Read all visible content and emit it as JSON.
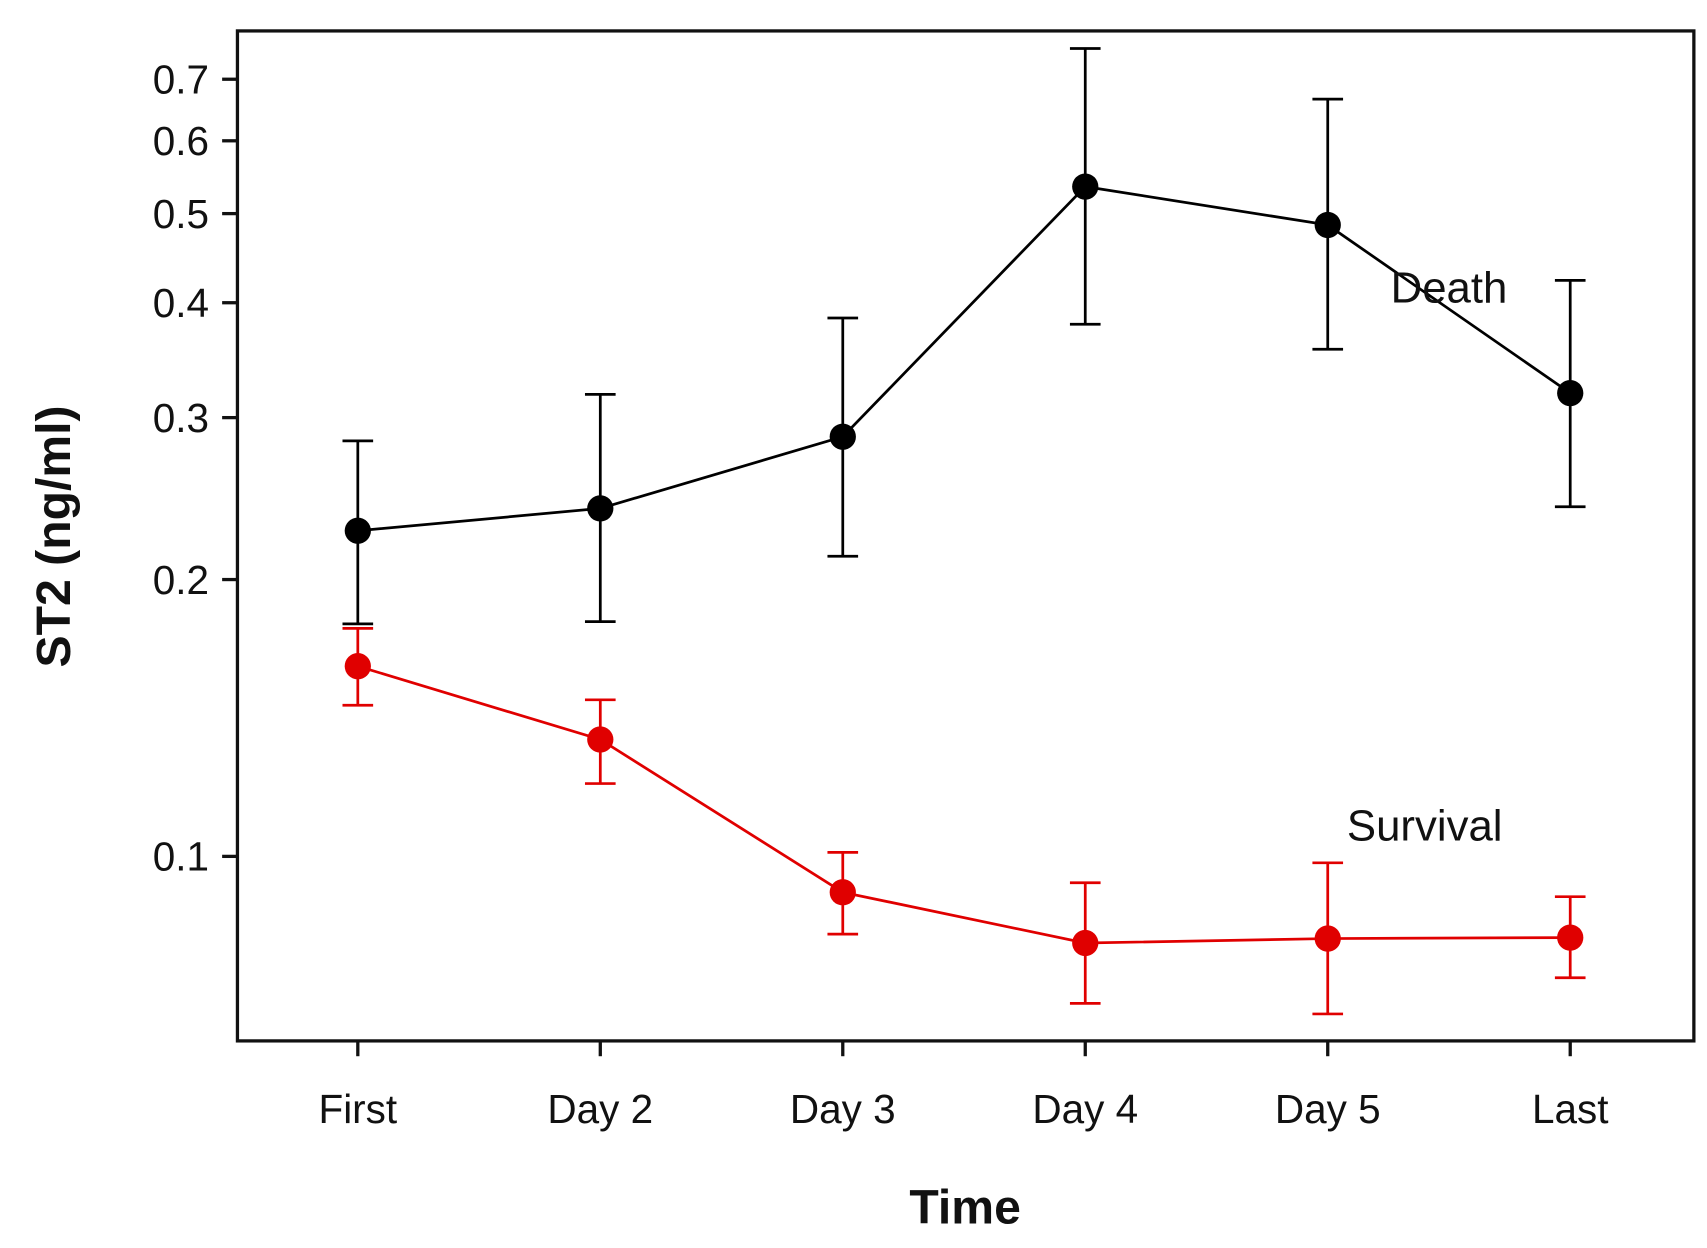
{
  "chart_data": {
    "type": "line",
    "title": "",
    "xlabel": "Time",
    "ylabel": "ST2 (ng/ml)",
    "yscale": "log",
    "ylim": [
      0.063,
      0.79
    ],
    "yticks": [
      0.1,
      0.2,
      0.3,
      0.4,
      0.5,
      0.6,
      0.7
    ],
    "ytick_labels": [
      "0.1",
      "0.2",
      "0.3",
      "0.4",
      "0.5",
      "0.6",
      "0.7"
    ],
    "categories": [
      "First",
      "Day 2",
      "Day 3",
      "Day 4",
      "Day 5",
      "Last"
    ],
    "grid": false,
    "series": [
      {
        "name": "Death",
        "color": "#000000",
        "values": [
          0.226,
          0.239,
          0.286,
          0.535,
          0.486,
          0.319
        ],
        "error_upper": [
          0.283,
          0.318,
          0.385,
          0.756,
          0.666,
          0.423
        ],
        "error_lower": [
          0.179,
          0.18,
          0.212,
          0.379,
          0.356,
          0.24
        ],
        "label_at": [
          4.5,
          0.4
        ]
      },
      {
        "name": "Survival",
        "color": "#e00000",
        "values": [
          0.161,
          0.134,
          0.0914,
          0.0805,
          0.0814,
          0.0816
        ],
        "error_upper": [
          0.177,
          0.148,
          0.101,
          0.0936,
          0.0984,
          0.0904
        ],
        "error_lower": [
          0.146,
          0.12,
          0.0823,
          0.0692,
          0.0674,
          0.0738
        ],
        "label_at": [
          4.4,
          0.104
        ]
      }
    ]
  }
}
